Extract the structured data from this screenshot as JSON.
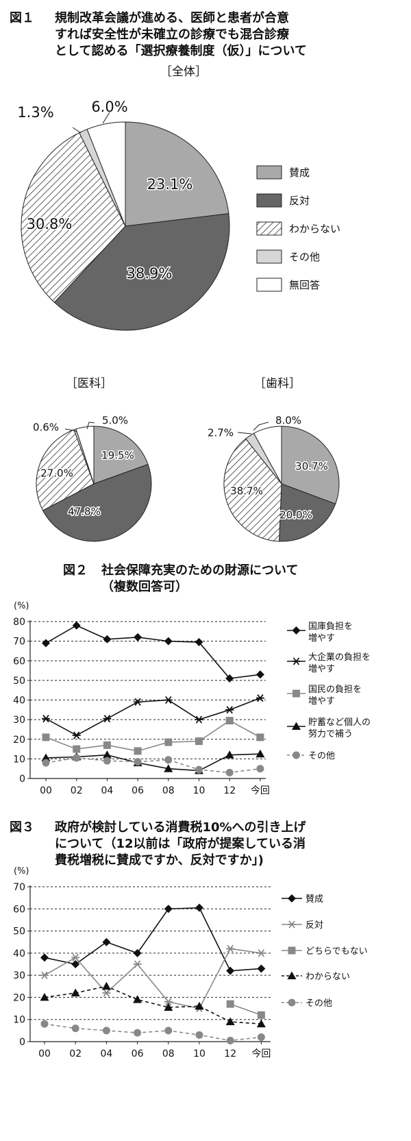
{
  "colors": {
    "sansei": "#a9a9a9",
    "hantai": "#666666",
    "wakaranai_hatch": "#333333",
    "sonota": "#d6d6d6",
    "mukaito": "#ffffff",
    "line_dark": "#111111",
    "line_gray": "#888888"
  },
  "fig1": {
    "number": "図１",
    "title_lines": [
      "規制改革会議が進める、医師と患者が合意",
      "すれば安全性が未確立の診療でも混合診療",
      "として認める「選択療養制度（仮）」について"
    ],
    "legend": [
      "賛成",
      "反対",
      "わからない",
      "その他",
      "無回答"
    ]
  },
  "fig2": {
    "number": "図２",
    "title_lines": [
      "社会保障充実のための財源について",
      "（複数回答可）"
    ],
    "unit": "(%)"
  },
  "fig3": {
    "number": "図３",
    "title_lines": [
      "政府が検討している消費税10%への引き上げ",
      "について（12以前は「政府が提案している消",
      "費税増税に賛成ですか、反対ですか」)"
    ],
    "unit": "(%)"
  },
  "chart_data": [
    {
      "type": "pie",
      "title": "［全体］",
      "labels": [
        "賛成",
        "反対",
        "わからない",
        "その他",
        "無回答"
      ],
      "values": [
        23.1,
        38.9,
        30.8,
        1.3,
        6.0
      ],
      "value_labels": [
        "23.1%",
        "38.9%",
        "30.8%",
        "1.3%",
        "6.0%"
      ]
    },
    {
      "type": "pie",
      "title": "［医科］",
      "labels": [
        "賛成",
        "反対",
        "わからない",
        "その他",
        "無回答"
      ],
      "values": [
        19.5,
        47.8,
        27.0,
        0.6,
        5.0
      ],
      "value_labels": [
        "19.5%",
        "47.8%",
        "27.0%",
        "0.6%",
        "5.0%"
      ]
    },
    {
      "type": "pie",
      "title": "［歯科］",
      "labels": [
        "賛成",
        "反対",
        "わからない",
        "その他",
        "無回答"
      ],
      "values": [
        30.7,
        20.0,
        38.7,
        2.7,
        8.0
      ],
      "value_labels": [
        "30.7%",
        "20.0%",
        "38.7%",
        "2.7%",
        "8.0%"
      ]
    },
    {
      "type": "line",
      "categories": [
        "00",
        "02",
        "04",
        "06",
        "08",
        "10",
        "12",
        "今回"
      ],
      "ylim": [
        0,
        80
      ],
      "yticks": [
        0,
        10,
        20,
        30,
        40,
        50,
        60,
        70,
        80
      ],
      "grid": true,
      "legend_position": "right",
      "series": [
        {
          "name": "国庫負担を\n増やす",
          "marker": "diamond",
          "color": "#111111",
          "dashed": false,
          "values": [
            69,
            78,
            71,
            72,
            70,
            69.5,
            51,
            53
          ]
        },
        {
          "name": "大企業の負担を\n増やす",
          "marker": "asterisk",
          "color": "#111111",
          "dashed": false,
          "values": [
            30.5,
            22,
            30.5,
            39,
            40,
            30,
            35,
            41
          ]
        },
        {
          "name": "国民の負担を\n増やす",
          "marker": "square",
          "color": "#888888",
          "dashed": false,
          "values": [
            21,
            15,
            17,
            14,
            18.5,
            19,
            29.5,
            21
          ]
        },
        {
          "name": "貯蓄など個人の\n努力で補う",
          "marker": "triangle",
          "color": "#111111",
          "dashed": false,
          "values": [
            10.5,
            11,
            12,
            8,
            5,
            4,
            12,
            12.5
          ]
        },
        {
          "name": "その他",
          "marker": "circle",
          "color": "#888888",
          "dashed": true,
          "values": [
            8,
            10.5,
            9,
            8.5,
            9.5,
            4.5,
            3,
            5
          ]
        }
      ]
    },
    {
      "type": "line",
      "categories": [
        "00",
        "02",
        "04",
        "06",
        "08",
        "10",
        "12",
        "今回"
      ],
      "ylim": [
        0,
        70
      ],
      "yticks": [
        0,
        10,
        20,
        30,
        40,
        50,
        60,
        70
      ],
      "grid": true,
      "legend_position": "right",
      "series": [
        {
          "name": "賛成",
          "marker": "diamond",
          "color": "#111111",
          "dashed": false,
          "values": [
            38,
            35,
            45,
            40,
            60,
            60.5,
            32,
            33
          ]
        },
        {
          "name": "反対",
          "marker": "asterisk",
          "color": "#888888",
          "dashed": false,
          "values": [
            30,
            38,
            22,
            35,
            18,
            15,
            42,
            40
          ]
        },
        {
          "name": "どちらでもない",
          "marker": "square",
          "color": "#888888",
          "dashed": false,
          "values": [
            null,
            null,
            null,
            null,
            null,
            null,
            17,
            12
          ]
        },
        {
          "name": "わからない",
          "marker": "triangle",
          "color": "#111111",
          "dashed": true,
          "values": [
            20,
            22,
            25,
            19,
            15.5,
            16,
            9,
            8
          ]
        },
        {
          "name": "その他",
          "marker": "circle",
          "color": "#888888",
          "dashed": true,
          "values": [
            8,
            6,
            5,
            4,
            5,
            3,
            0.5,
            2
          ]
        }
      ]
    }
  ]
}
